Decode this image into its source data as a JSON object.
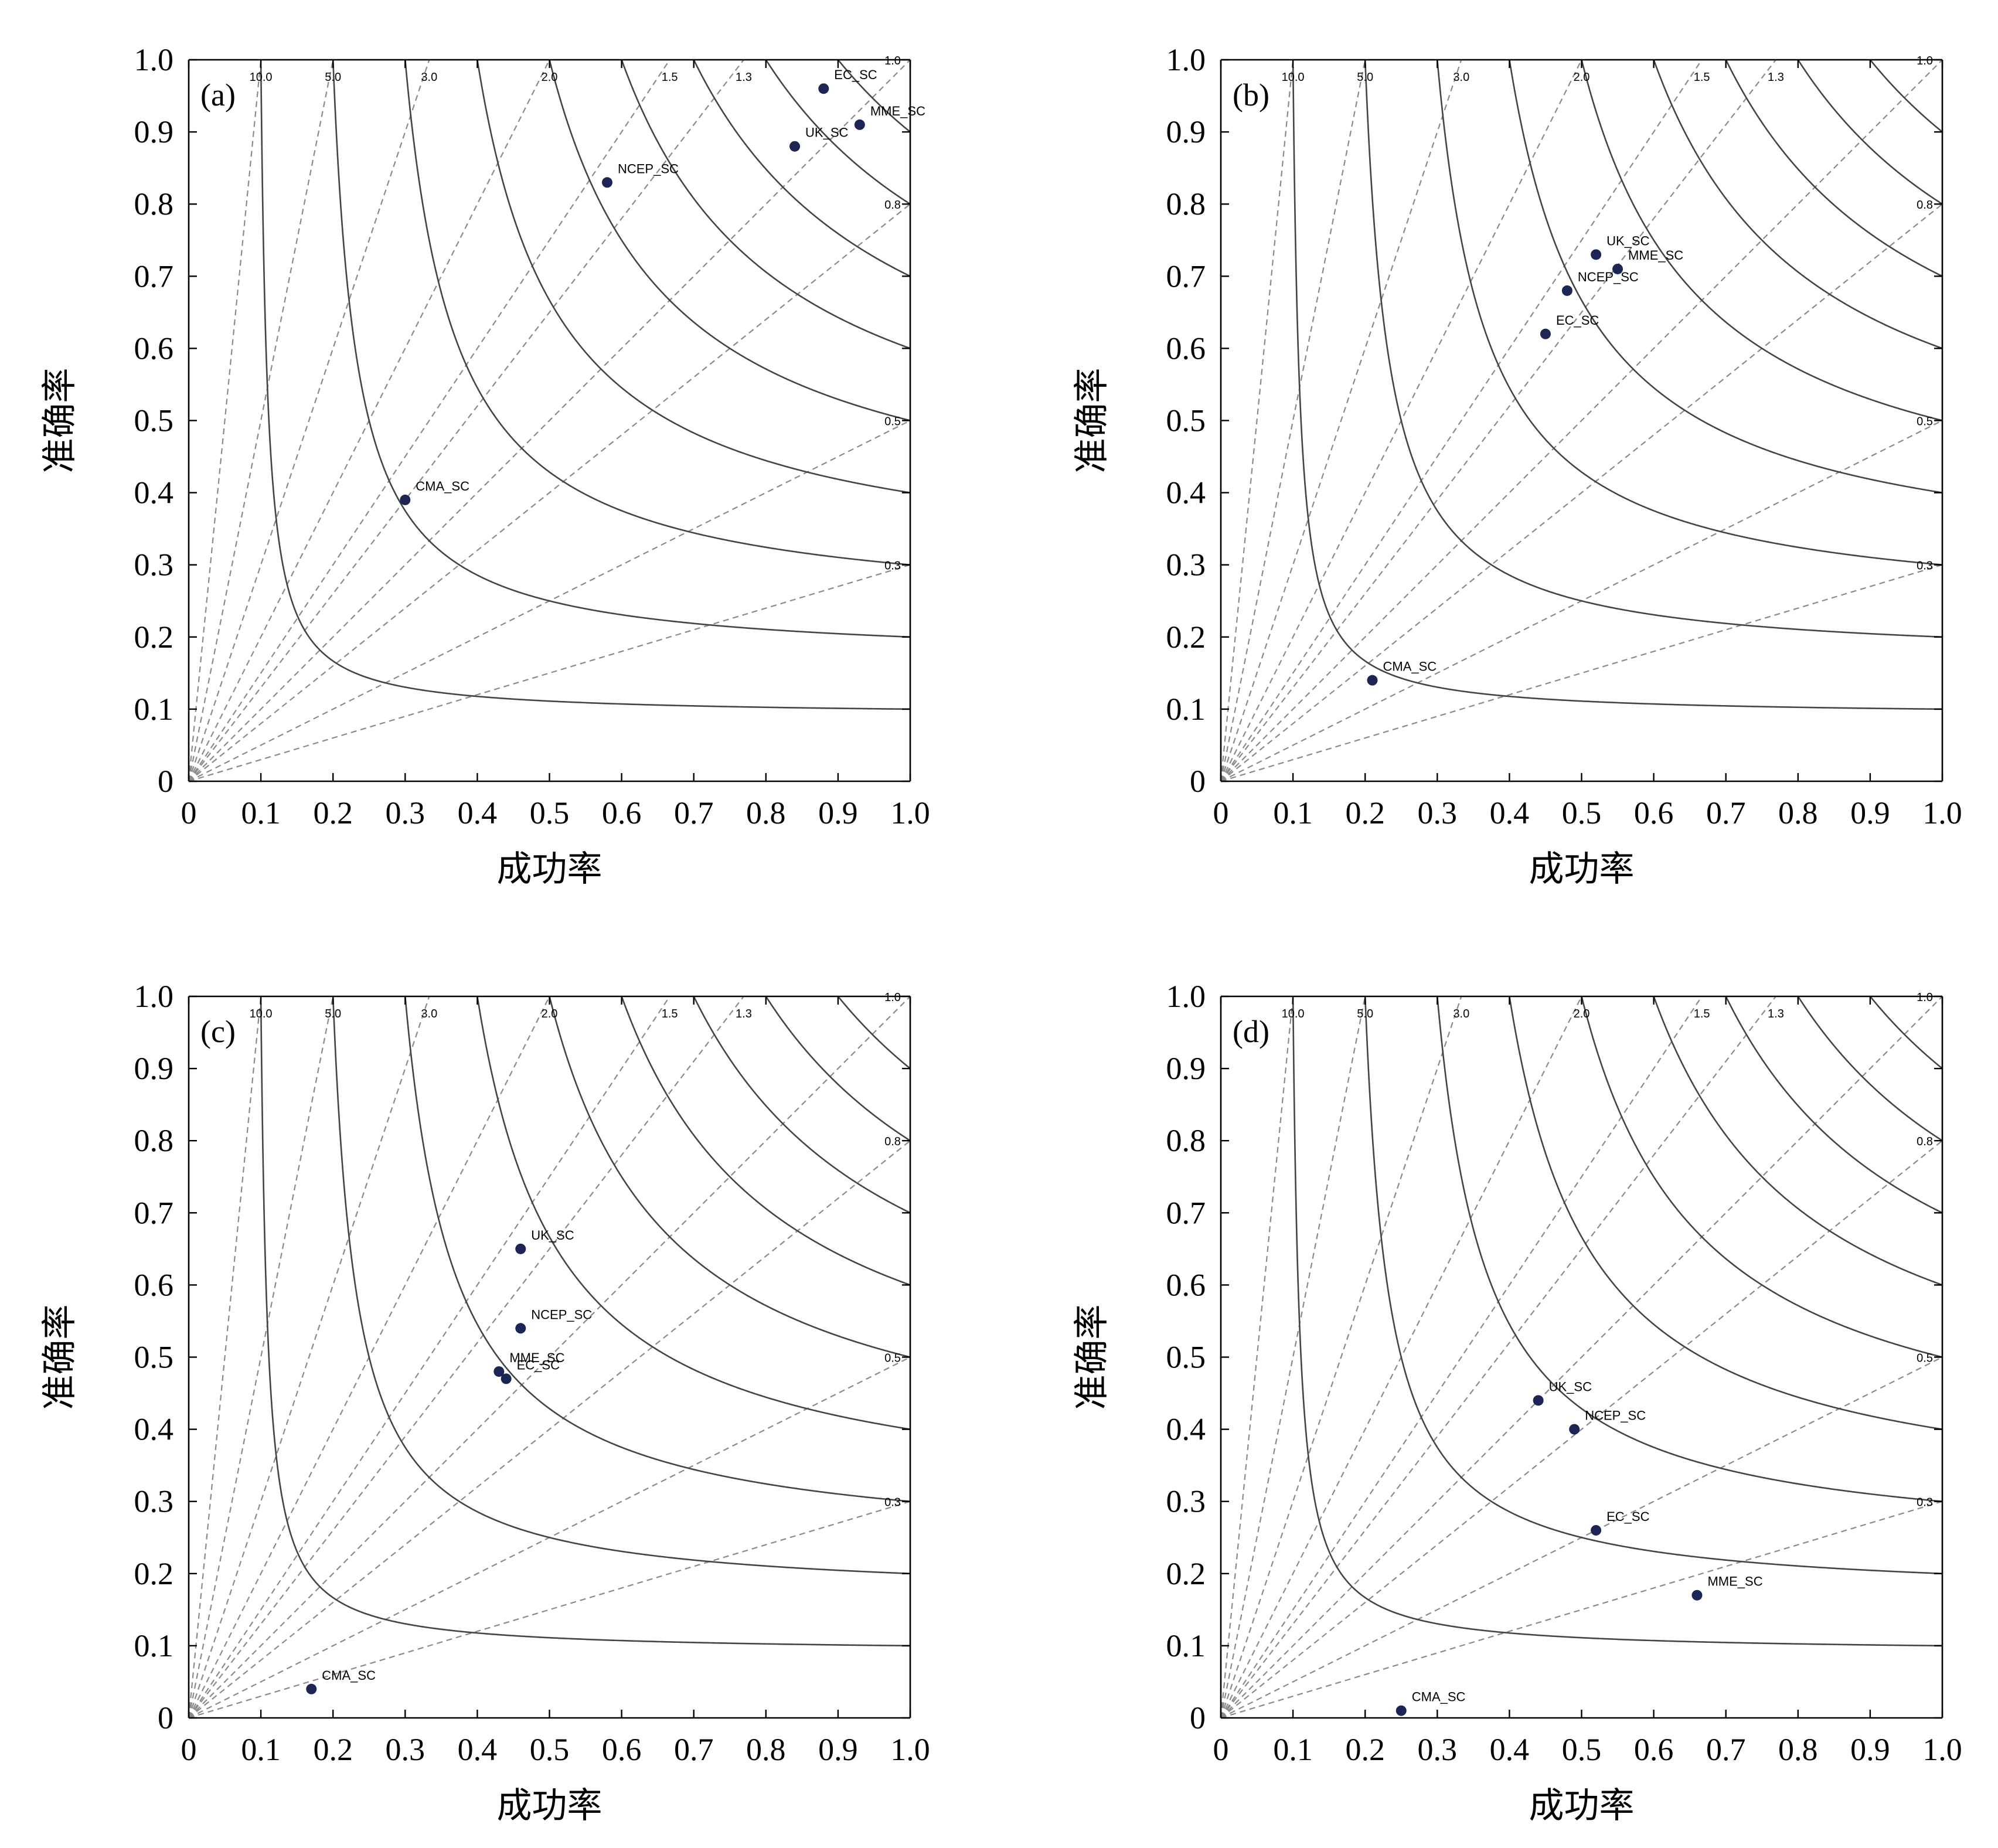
{
  "chart_data": [
    {
      "type": "scatter",
      "panel_label": "(a)",
      "xlabel": "成功率",
      "ylabel": "准确率",
      "xlim": [
        0,
        1.0
      ],
      "ylim": [
        0,
        1.0
      ],
      "x_ticks": [
        "0",
        "0.1",
        "0.2",
        "0.3",
        "0.4",
        "0.5",
        "0.6",
        "0.7",
        "0.8",
        "0.9",
        "1.0"
      ],
      "y_ticks": [
        "0",
        "0.1",
        "0.2",
        "0.3",
        "0.4",
        "0.5",
        "0.6",
        "0.7",
        "0.8",
        "0.9",
        "1.0"
      ],
      "points": [
        {
          "label": "EC_SC",
          "x": 0.88,
          "y": 0.96
        },
        {
          "label": "MME_SC",
          "x": 0.93,
          "y": 0.91
        },
        {
          "label": "UK_SC",
          "x": 0.84,
          "y": 0.88
        },
        {
          "label": "NCEP_SC",
          "x": 0.58,
          "y": 0.83
        },
        {
          "label": "CMA_SC",
          "x": 0.3,
          "y": 0.39
        }
      ]
    },
    {
      "type": "scatter",
      "panel_label": "(b)",
      "xlabel": "成功率",
      "ylabel": "准确率",
      "xlim": [
        0,
        1.0
      ],
      "ylim": [
        0,
        1.0
      ],
      "x_ticks": [
        "0",
        "0.1",
        "0.2",
        "0.3",
        "0.4",
        "0.5",
        "0.6",
        "0.7",
        "0.8",
        "0.9",
        "1.0"
      ],
      "y_ticks": [
        "0",
        "0.1",
        "0.2",
        "0.3",
        "0.4",
        "0.5",
        "0.6",
        "0.7",
        "0.8",
        "0.9",
        "1.0"
      ],
      "points": [
        {
          "label": "UK_SC",
          "x": 0.52,
          "y": 0.73
        },
        {
          "label": "MME_SC",
          "x": 0.55,
          "y": 0.71
        },
        {
          "label": "NCEP_SC",
          "x": 0.48,
          "y": 0.68
        },
        {
          "label": "EC_SC",
          "x": 0.45,
          "y": 0.62
        },
        {
          "label": "CMA_SC",
          "x": 0.21,
          "y": 0.14
        }
      ]
    },
    {
      "type": "scatter",
      "panel_label": "(c)",
      "xlabel": "成功率",
      "ylabel": "准确率",
      "xlim": [
        0,
        1.0
      ],
      "ylim": [
        0,
        1.0
      ],
      "x_ticks": [
        "0",
        "0.1",
        "0.2",
        "0.3",
        "0.4",
        "0.5",
        "0.6",
        "0.7",
        "0.8",
        "0.9",
        "1.0"
      ],
      "y_ticks": [
        "0",
        "0.1",
        "0.2",
        "0.3",
        "0.4",
        "0.5",
        "0.6",
        "0.7",
        "0.8",
        "0.9",
        "1.0"
      ],
      "points": [
        {
          "label": "UK_SC",
          "x": 0.46,
          "y": 0.65
        },
        {
          "label": "NCEP_SC",
          "x": 0.46,
          "y": 0.54
        },
        {
          "label": "MME_SC",
          "x": 0.43,
          "y": 0.48
        },
        {
          "label": "EC_SC",
          "x": 0.44,
          "y": 0.47
        },
        {
          "label": "CMA_SC",
          "x": 0.17,
          "y": 0.04
        }
      ]
    },
    {
      "type": "scatter",
      "panel_label": "(d)",
      "xlabel": "成功率",
      "ylabel": "准确率",
      "xlim": [
        0,
        1.0
      ],
      "ylim": [
        0,
        1.0
      ],
      "x_ticks": [
        "0",
        "0.1",
        "0.2",
        "0.3",
        "0.4",
        "0.5",
        "0.6",
        "0.7",
        "0.8",
        "0.9",
        "1.0"
      ],
      "y_ticks": [
        "0",
        "0.1",
        "0.2",
        "0.3",
        "0.4",
        "0.5",
        "0.6",
        "0.7",
        "0.8",
        "0.9",
        "1.0"
      ],
      "points": [
        {
          "label": "UK_SC",
          "x": 0.44,
          "y": 0.44
        },
        {
          "label": "NCEP_SC",
          "x": 0.49,
          "y": 0.4
        },
        {
          "label": "EC_SC",
          "x": 0.52,
          "y": 0.26
        },
        {
          "label": "MME_SC",
          "x": 0.66,
          "y": 0.17
        },
        {
          "label": "CMA_SC",
          "x": 0.25,
          "y": 0.01
        }
      ]
    }
  ],
  "bias_lines": [
    {
      "label": "10.0",
      "value": 10.0
    },
    {
      "label": "5.0",
      "value": 5.0
    },
    {
      "label": "3.0",
      "value": 3.0
    },
    {
      "label": "2.0",
      "value": 2.0
    },
    {
      "label": "1.5",
      "value": 1.5
    },
    {
      "label": "1.3",
      "value": 1.3
    },
    {
      "label": "1.0",
      "value": 1.0
    },
    {
      "label": "0.8",
      "value": 0.8
    },
    {
      "label": "0.5",
      "value": 0.5
    },
    {
      "label": "0.3",
      "value": 0.3
    }
  ],
  "csi_curves": [
    0.1,
    0.2,
    0.3,
    0.4,
    0.5,
    0.6,
    0.7,
    0.8,
    0.9
  ],
  "colors": {
    "point": "#1c2553",
    "csi_curve": "#444444",
    "bias_line": "#8a8a8a",
    "axis": "#000000"
  }
}
